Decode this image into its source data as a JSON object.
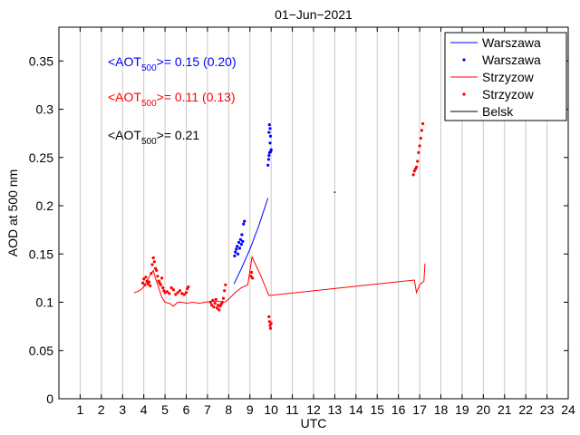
{
  "chart_data": {
    "type": "line",
    "title": "01−Jun−2021",
    "xlabel": "UTC",
    "ylabel": "AOD at 500 nm",
    "xlim": [
      0,
      24
    ],
    "ylim": [
      0,
      0.385
    ],
    "xticks": [
      1,
      2,
      3,
      4,
      5,
      6,
      7,
      8,
      9,
      10,
      11,
      12,
      13,
      14,
      15,
      16,
      17,
      18,
      19,
      20,
      21,
      22,
      23,
      24
    ],
    "yticks": [
      0,
      0.05,
      0.1,
      0.15,
      0.2,
      0.25,
      0.3,
      0.35
    ],
    "ytick_labels": [
      "0",
      "0.05",
      "0.1",
      "0.15",
      "0.2",
      "0.25",
      "0.3",
      "0.35"
    ],
    "grid": true,
    "legend_position": "top-right",
    "colors": {
      "blue": "#0000ff",
      "red": "#ff0000",
      "black": "#000000"
    },
    "annotations": [
      {
        "prefix": "<AOT",
        "sub": "500",
        "suffix": ">= 0.15 (0.20)",
        "color": "#0000ff"
      },
      {
        "prefix": "<AOT",
        "sub": "500",
        "suffix": ">= 0.11 (0.13)",
        "color": "#ff0000"
      },
      {
        "prefix": "<AOT",
        "sub": "500",
        "suffix": ">= 0.21",
        "color": "#000000"
      }
    ],
    "series": [
      {
        "name": "Warszawa",
        "style": "line",
        "color": "#0000ff",
        "x": [
          8.25,
          8.6,
          9.0,
          9.4,
          9.85
        ],
        "y": [
          0.119,
          0.135,
          0.155,
          0.178,
          0.208
        ]
      },
      {
        "name": "Warszawa",
        "style": "points",
        "color": "#0000ff",
        "x": [
          8.28,
          8.32,
          8.36,
          8.4,
          8.44,
          8.48,
          8.52,
          8.56,
          8.6,
          8.62,
          8.66,
          8.7,
          8.74,
          9.85,
          9.88,
          9.9,
          9.93,
          9.95,
          9.98,
          9.97,
          10.0,
          9.9,
          9.95,
          9.92
        ],
        "y": [
          0.148,
          0.152,
          0.155,
          0.158,
          0.15,
          0.162,
          0.156,
          0.165,
          0.16,
          0.17,
          0.163,
          0.181,
          0.184,
          0.242,
          0.248,
          0.252,
          0.255,
          0.265,
          0.256,
          0.272,
          0.258,
          0.276,
          0.28,
          0.284
        ]
      },
      {
        "name": "Strzyzow",
        "style": "line",
        "color": "#ff0000",
        "x": [
          3.55,
          3.7,
          3.85,
          4.0,
          4.15,
          4.3,
          4.45,
          4.55,
          4.7,
          4.85,
          5.0,
          5.2,
          5.4,
          5.6,
          5.8,
          6.0,
          6.3,
          6.6,
          6.9,
          7.2,
          7.5,
          7.8,
          8.0,
          8.3,
          8.6,
          8.9,
          9.1,
          9.5,
          9.9,
          16.75,
          16.85,
          17.0,
          17.2,
          17.25
        ],
        "y": [
          0.11,
          0.111,
          0.113,
          0.116,
          0.122,
          0.128,
          0.133,
          0.125,
          0.115,
          0.105,
          0.1,
          0.099,
          0.096,
          0.1,
          0.1,
          0.099,
          0.1,
          0.099,
          0.1,
          0.101,
          0.101,
          0.1,
          0.103,
          0.11,
          0.115,
          0.118,
          0.147,
          0.128,
          0.107,
          0.123,
          0.11,
          0.118,
          0.122,
          0.14
        ]
      },
      {
        "name": "Strzyzow",
        "style": "points",
        "color": "#ff0000",
        "x": [
          3.95,
          4.0,
          4.05,
          4.1,
          4.15,
          4.2,
          4.25,
          4.3,
          4.35,
          4.4,
          4.45,
          4.5,
          4.55,
          4.6,
          4.65,
          4.7,
          4.75,
          4.8,
          4.85,
          4.9,
          4.95,
          5.0,
          5.1,
          5.2,
          5.3,
          5.4,
          5.5,
          5.6,
          5.7,
          5.8,
          5.9,
          6.0,
          6.05,
          6.1,
          7.15,
          7.2,
          7.25,
          7.3,
          7.35,
          7.4,
          7.45,
          7.5,
          7.55,
          7.6,
          7.65,
          7.7,
          7.75,
          7.8,
          7.85,
          9.05,
          9.08,
          9.12,
          9.9,
          9.92,
          9.95,
          9.97,
          10.0,
          16.7,
          16.75,
          16.8,
          16.85,
          16.9,
          16.95,
          17.0,
          17.05,
          17.1,
          17.15
        ],
        "y": [
          0.12,
          0.124,
          0.118,
          0.126,
          0.122,
          0.119,
          0.121,
          0.117,
          0.13,
          0.139,
          0.146,
          0.142,
          0.135,
          0.133,
          0.127,
          0.122,
          0.12,
          0.118,
          0.125,
          0.115,
          0.112,
          0.11,
          0.111,
          0.109,
          0.115,
          0.113,
          0.108,
          0.11,
          0.112,
          0.109,
          0.108,
          0.11,
          0.114,
          0.116,
          0.1,
          0.097,
          0.102,
          0.095,
          0.099,
          0.103,
          0.094,
          0.097,
          0.092,
          0.096,
          0.098,
          0.1,
          0.104,
          0.112,
          0.118,
          0.127,
          0.131,
          0.125,
          0.085,
          0.08,
          0.076,
          0.073,
          0.078,
          0.232,
          0.236,
          0.238,
          0.24,
          0.246,
          0.255,
          0.262,
          0.27,
          0.278,
          0.285
        ]
      },
      {
        "name": "Belsk",
        "style": "line",
        "color": "#000000",
        "x": [
          12.95,
          13.05
        ],
        "y": [
          0.214,
          0.214
        ]
      }
    ]
  }
}
